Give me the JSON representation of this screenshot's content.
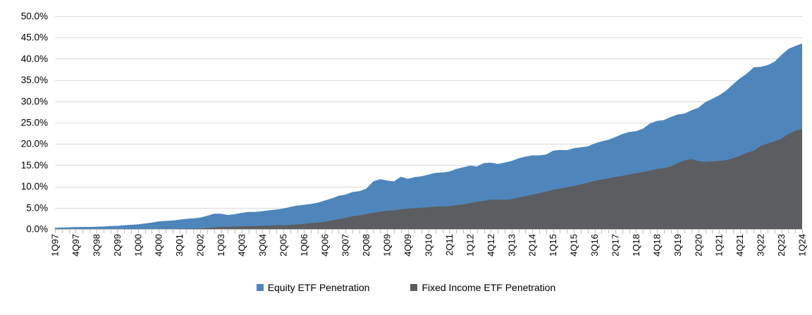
{
  "colors": {
    "equity": "#4E86BC",
    "fixed_income": "#5B5D60",
    "gridline": "#D9D9D9",
    "axis_line": "#BFBFBF",
    "text": "#000000",
    "background": "#FFFFFF"
  },
  "y_axis": {
    "tick_labels": [
      "50.0%",
      "45.0%",
      "40.0%",
      "35.0%",
      "30.0%",
      "25.0%",
      "20.0%",
      "15.0%",
      "10.0%",
      "5.0%",
      "0.0%"
    ],
    "min": 0,
    "max": 50,
    "step": 5
  },
  "chart_data": {
    "type": "area",
    "overlay": true,
    "title": "",
    "xlabel": "",
    "ylabel": "",
    "ylim": [
      0,
      50
    ],
    "grid": true,
    "legend_position": "bottom",
    "x": [
      "1Q97",
      "2Q97",
      "3Q97",
      "4Q97",
      "1Q98",
      "2Q98",
      "3Q98",
      "4Q98",
      "1Q99",
      "2Q99",
      "3Q99",
      "4Q99",
      "1Q00",
      "2Q00",
      "3Q00",
      "4Q00",
      "1Q01",
      "2Q01",
      "3Q01",
      "4Q01",
      "1Q02",
      "2Q02",
      "3Q02",
      "4Q02",
      "1Q03",
      "2Q03",
      "3Q03",
      "4Q03",
      "1Q04",
      "2Q04",
      "3Q04",
      "4Q04",
      "1Q05",
      "2Q05",
      "3Q05",
      "4Q05",
      "1Q06",
      "2Q06",
      "3Q06",
      "4Q06",
      "1Q07",
      "2Q07",
      "3Q07",
      "4Q07",
      "1Q08",
      "2Q08",
      "3Q08",
      "4Q08",
      "1Q09",
      "2Q09",
      "3Q09",
      "4Q09",
      "1Q10",
      "2Q10",
      "3Q10",
      "4Q10",
      "1Q11",
      "2Q11",
      "3Q11",
      "4Q11",
      "1Q12",
      "2Q12",
      "3Q12",
      "4Q12",
      "1Q13",
      "2Q13",
      "3Q13",
      "4Q13",
      "1Q14",
      "2Q14",
      "3Q14",
      "4Q14",
      "1Q15",
      "2Q15",
      "3Q15",
      "4Q15",
      "1Q16",
      "2Q16",
      "3Q16",
      "4Q16",
      "1Q17",
      "2Q17",
      "3Q17",
      "4Q17",
      "1Q18",
      "2Q18",
      "3Q18",
      "4Q18",
      "1Q19",
      "2Q19",
      "3Q19",
      "4Q19",
      "1Q20",
      "2Q20",
      "3Q20",
      "4Q20",
      "1Q21",
      "2Q21",
      "3Q21",
      "4Q21",
      "1Q22",
      "2Q22",
      "3Q22",
      "4Q22",
      "1Q23",
      "2Q23",
      "3Q23",
      "4Q23",
      "1Q24"
    ],
    "x_tick_labels": [
      "1Q97",
      "4Q97",
      "3Q98",
      "2Q99",
      "1Q00",
      "4Q00",
      "3Q01",
      "2Q02",
      "1Q03",
      "4Q03",
      "3Q04",
      "2Q05",
      "1Q06",
      "4Q06",
      "3Q07",
      "2Q08",
      "1Q09",
      "4Q09",
      "3Q10",
      "2Q11",
      "1Q12",
      "4Q12",
      "3Q13",
      "2Q14",
      "1Q15",
      "4Q15",
      "3Q16",
      "2Q17",
      "1Q18",
      "4Q18",
      "3Q19",
      "2Q20",
      "1Q21",
      "4Q21",
      "3Q22",
      "2Q23",
      "1Q24"
    ],
    "x_tick_every": 3,
    "series": [
      {
        "name": "Equity ETF Penetration",
        "color": "#4E86BC",
        "values": [
          0.3,
          0.35,
          0.4,
          0.45,
          0.5,
          0.5,
          0.55,
          0.6,
          0.7,
          0.75,
          0.9,
          1.0,
          1.1,
          1.3,
          1.5,
          1.8,
          1.9,
          2.0,
          2.2,
          2.4,
          2.5,
          2.7,
          3.1,
          3.6,
          3.6,
          3.3,
          3.5,
          3.8,
          4.0,
          4.0,
          4.2,
          4.4,
          4.6,
          4.8,
          5.2,
          5.5,
          5.7,
          5.9,
          6.2,
          6.7,
          7.2,
          7.8,
          8.1,
          8.7,
          8.9,
          9.5,
          11.2,
          11.7,
          11.4,
          11.2,
          12.3,
          11.8,
          12.2,
          12.4,
          12.8,
          13.2,
          13.3,
          13.5,
          14.1,
          14.5,
          14.9,
          14.7,
          15.5,
          15.6,
          15.3,
          15.6,
          16.0,
          16.6,
          17.0,
          17.3,
          17.3,
          17.5,
          18.4,
          18.6,
          18.5,
          19.0,
          19.2,
          19.4,
          20.1,
          20.6,
          21.0,
          21.6,
          22.3,
          22.8,
          23.0,
          23.6,
          24.8,
          25.4,
          25.6,
          26.3,
          26.9,
          27.1,
          27.9,
          28.5,
          29.8,
          30.6,
          31.4,
          32.5,
          34.0,
          35.4,
          36.5,
          38.0,
          38.1,
          38.5,
          39.3,
          40.9,
          42.3,
          43.0,
          43.6
        ]
      },
      {
        "name": "Fixed Income ETF Penetration",
        "color": "#5B5D60",
        "values": [
          0,
          0,
          0,
          0,
          0,
          0,
          0,
          0,
          0,
          0,
          0,
          0,
          0,
          0,
          0,
          0,
          0,
          0,
          0.05,
          0.05,
          0.1,
          0.1,
          0.3,
          0.4,
          0.5,
          0.5,
          0.6,
          0.6,
          0.7,
          0.7,
          0.8,
          0.8,
          0.9,
          0.9,
          1.0,
          1.1,
          1.2,
          1.4,
          1.5,
          1.7,
          2.0,
          2.3,
          2.6,
          3.0,
          3.2,
          3.5,
          3.8,
          4.1,
          4.3,
          4.4,
          4.6,
          4.8,
          4.9,
          5.0,
          5.1,
          5.3,
          5.3,
          5.4,
          5.6,
          5.8,
          6.1,
          6.4,
          6.6,
          6.9,
          6.9,
          6.85,
          7.0,
          7.4,
          7.7,
          8.1,
          8.4,
          8.8,
          9.2,
          9.5,
          9.8,
          10.1,
          10.5,
          10.9,
          11.3,
          11.6,
          11.9,
          12.2,
          12.5,
          12.8,
          13.1,
          13.4,
          13.7,
          14.1,
          14.3,
          14.7,
          15.5,
          16.1,
          16.4,
          16.0,
          15.8,
          15.9,
          16.0,
          16.2,
          16.6,
          17.2,
          17.9,
          18.4,
          19.5,
          20.1,
          20.6,
          21.2,
          22.3,
          23.1,
          23.5
        ]
      }
    ]
  }
}
